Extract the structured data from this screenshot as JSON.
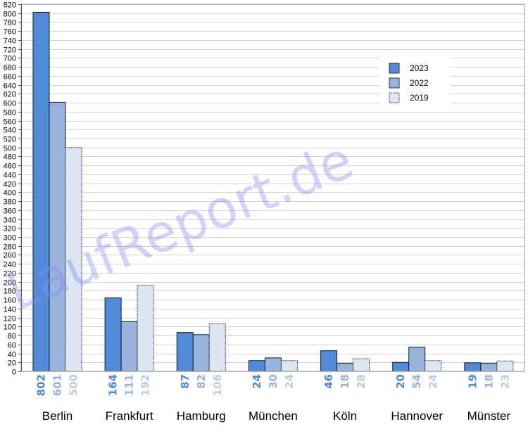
{
  "chart_data": {
    "type": "bar",
    "categories": [
      "Berlin",
      "Frankfurt",
      "Hamburg",
      "München",
      "Köln",
      "Hannover",
      "Münster"
    ],
    "series": [
      {
        "name": "2023",
        "color": "#4f8bd9",
        "values": [
          802,
          164,
          87,
          24,
          46,
          20,
          19
        ]
      },
      {
        "name": "2022",
        "color": "#98b4dc",
        "values": [
          601,
          111,
          82,
          30,
          18,
          54,
          18
        ]
      },
      {
        "name": "2019",
        "color": "#dce6f2",
        "values": [
          500,
          192,
          106,
          24,
          28,
          24,
          23
        ]
      }
    ],
    "value_labels": {
      "2023": [
        "802",
        "164",
        "87",
        "24",
        "46",
        "20",
        "19"
      ],
      "2022": [
        "601",
        "111",
        "82",
        "30",
        "18",
        "54",
        "18"
      ],
      "2019": [
        "500",
        "192",
        "106",
        "24",
        "28",
        "24",
        "23"
      ]
    },
    "value_label_colors": [
      "#4f8bd9",
      "#98b4dc",
      "#bccde6"
    ],
    "ylim": [
      0,
      820
    ],
    "ytick_step": 20,
    "grid": true,
    "legend": "top-right",
    "title": "",
    "xlabel": "",
    "ylabel": ""
  },
  "watermark": "LaufReport.de"
}
